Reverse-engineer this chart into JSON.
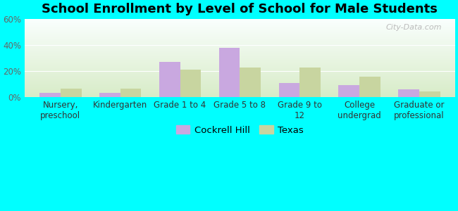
{
  "title": "School Enrollment by Level of School for Male Students",
  "categories": [
    "Nursery,\npreschool",
    "Kindergarten",
    "Grade 1 to 4",
    "Grade 5 to 8",
    "Grade 9 to\n12",
    "College\nundergrad",
    "Graduate or\nprofessional"
  ],
  "cockrell_hill": [
    3.5,
    3.5,
    27,
    38,
    11,
    9.5,
    6
  ],
  "texas": [
    6.5,
    6.5,
    21,
    22.5,
    23,
    16,
    4.5
  ],
  "cockrell_color": "#C9A8E0",
  "texas_color": "#C8D5A0",
  "background_color": "#00FFFF",
  "plot_bg_top": "#FAFFFE",
  "plot_bg_bottom": "#D8ECC8",
  "ylim": [
    0,
    60
  ],
  "yticks": [
    0,
    20,
    40,
    60
  ],
  "ytick_labels": [
    "0%",
    "20%",
    "40%",
    "60%"
  ],
  "bar_width": 0.35,
  "legend_labels": [
    "Cockrell Hill",
    "Texas"
  ],
  "title_fontsize": 13,
  "tick_fontsize": 8.5,
  "legend_fontsize": 9.5,
  "xlim_left": -0.6,
  "xlim_right": 6.6
}
